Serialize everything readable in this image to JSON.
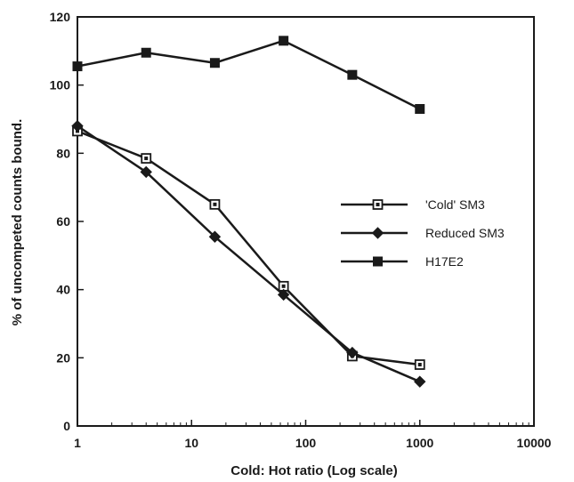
{
  "chart_data": {
    "type": "line",
    "title": "",
    "xlabel": "Cold: Hot ratio (Log scale)",
    "ylabel": "% of uncompeted counts bound.",
    "x_scale": "log",
    "xlim": [
      1,
      10000
    ],
    "ylim": [
      0,
      120
    ],
    "x_ticks": [
      1,
      10,
      100,
      1000,
      10000
    ],
    "x_tick_labels": [
      "1",
      "10",
      "100",
      "1000",
      "10000"
    ],
    "y_ticks": [
      0,
      20,
      40,
      60,
      80,
      100,
      120
    ],
    "y_tick_labels": [
      "0",
      "20",
      "40",
      "60",
      "80",
      "100",
      "120"
    ],
    "grid": false,
    "legend_position": "center-right",
    "series": [
      {
        "name": "'Cold' SM3",
        "marker": "open-square",
        "x": [
          1,
          4,
          16,
          64,
          256,
          1000
        ],
        "y": [
          86.5,
          78.5,
          65,
          41,
          20.5,
          18
        ]
      },
      {
        "name": "Reduced SM3",
        "marker": "diamond",
        "x": [
          1,
          4,
          16,
          64,
          256,
          1000
        ],
        "y": [
          88,
          74.5,
          55.5,
          38.5,
          21.5,
          13
        ]
      },
      {
        "name": "H17E2",
        "marker": "filled-square",
        "x": [
          1,
          4,
          16,
          64,
          256,
          1000
        ],
        "y": [
          105.5,
          109.5,
          106.5,
          113,
          103,
          93
        ]
      }
    ]
  }
}
